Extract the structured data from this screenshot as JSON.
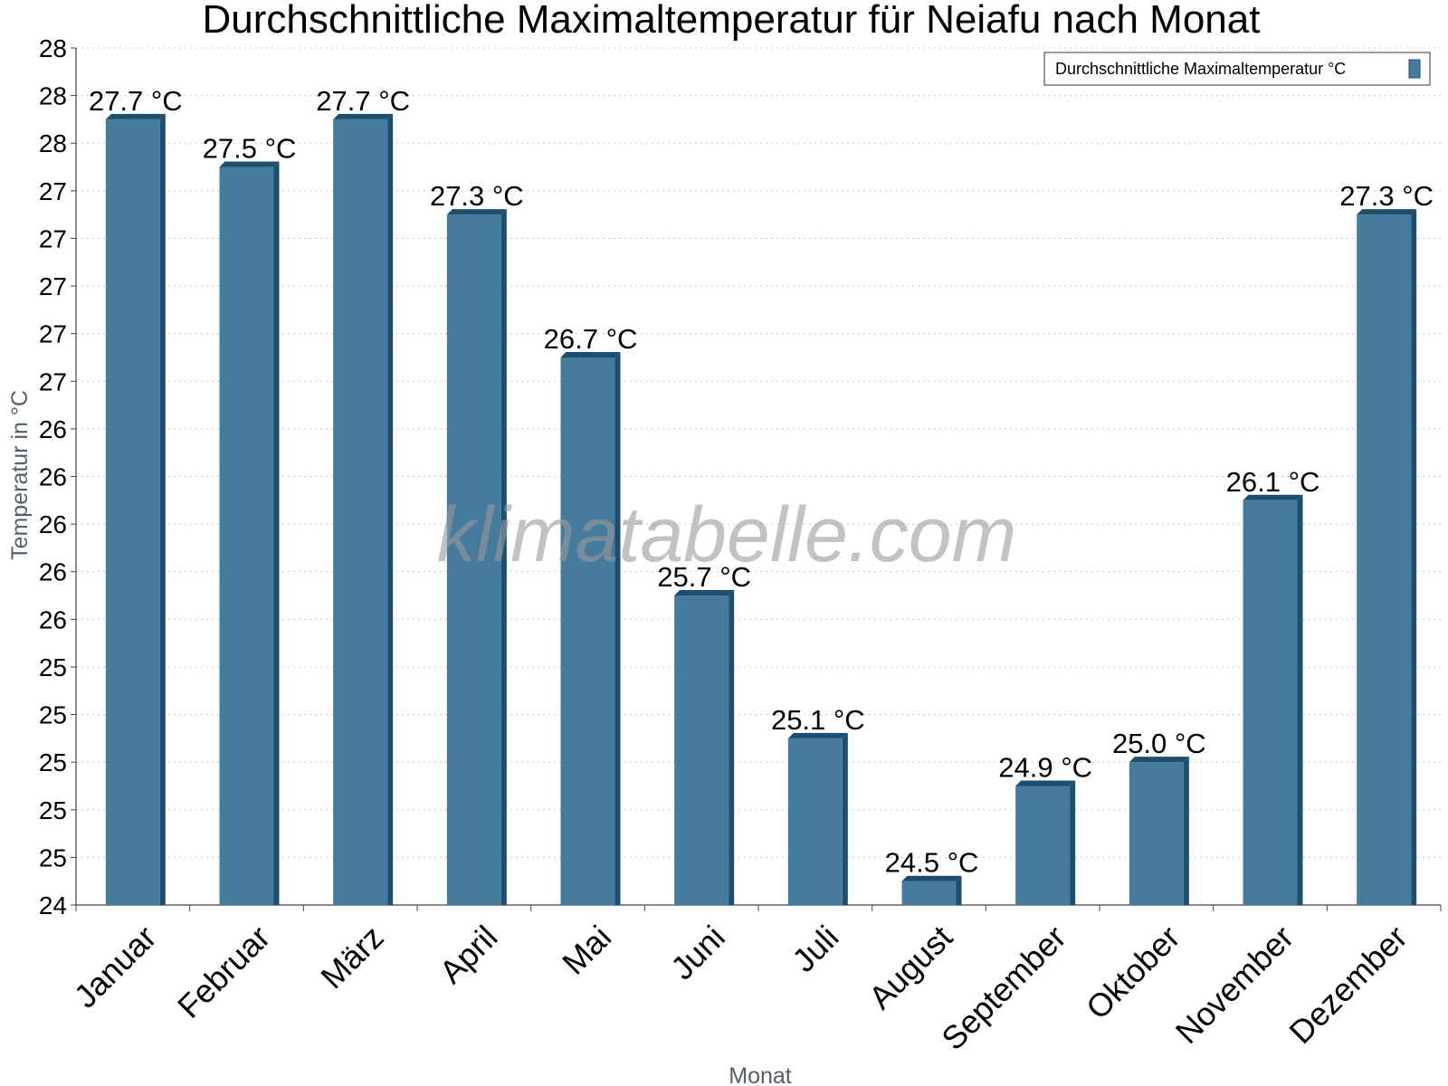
{
  "chart_data": {
    "type": "bar",
    "title": "Durchschnittliche Maximaltemperatur für Neiafu nach Monat",
    "xlabel": "Monat",
    "ylabel": "Temperatur in °C",
    "categories": [
      "Januar",
      "Februar",
      "März",
      "April",
      "Mai",
      "Juni",
      "Juli",
      "August",
      "September",
      "Oktober",
      "November",
      "Dezember"
    ],
    "series": [
      {
        "name": "Durchschnittliche Maximaltemperatur °C",
        "values": [
          27.7,
          27.5,
          27.7,
          27.3,
          26.7,
          25.7,
          25.1,
          24.5,
          24.9,
          25.0,
          26.1,
          27.3
        ],
        "labels": [
          "27.7 °C",
          "27.5 °C",
          "27.7 °C",
          "27.3 °C",
          "26.7 °C",
          "25.7 °C",
          "25.1 °C",
          "24.5 °C",
          "24.9 °C",
          "25.0 °C",
          "26.1 °C",
          "27.3 °C"
        ],
        "color": "#457b9d",
        "edge_color": "#1d4e6e"
      }
    ],
    "ylim": [
      24.4,
      28.0
    ],
    "yticks": [
      24.4,
      24.6,
      24.8,
      25.0,
      25.2,
      25.4,
      25.6,
      25.8,
      26.0,
      26.2,
      26.4,
      26.6,
      26.8,
      27.0,
      27.2,
      27.4,
      27.6,
      27.8,
      28.0
    ],
    "ytick_labels": [
      "24",
      "25",
      "25",
      "25",
      "25",
      "25",
      "26",
      "26",
      "26",
      "26",
      "26",
      "27",
      "27",
      "27",
      "27",
      "27",
      "28",
      "28",
      "28"
    ],
    "grid": true,
    "legend_position": "top-right",
    "watermark": "klimatabelle.com"
  }
}
